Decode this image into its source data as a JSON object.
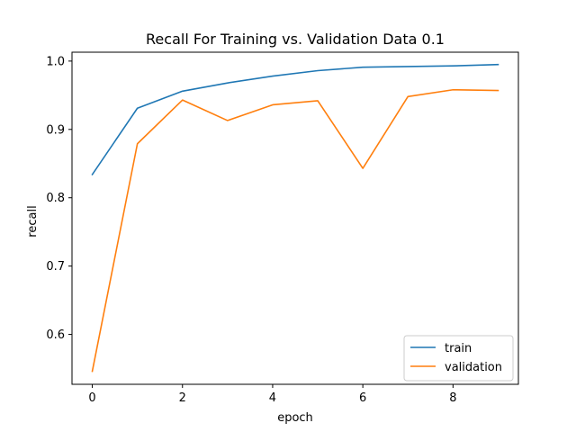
{
  "chart_data": {
    "type": "line",
    "title": "Recall For Training vs. Validation Data 0.1",
    "xlabel": "epoch",
    "ylabel": "recall",
    "xlim": [
      -0.45,
      9.45
    ],
    "ylim": [
      0.527,
      1.013
    ],
    "xticks": [
      0,
      2,
      4,
      6,
      8
    ],
    "yticks": [
      0.6,
      0.7,
      0.8,
      0.9,
      1.0
    ],
    "xtick_labels": [
      "0",
      "2",
      "4",
      "6",
      "8"
    ],
    "ytick_labels": [
      "0.6",
      "0.7",
      "0.8",
      "0.9",
      "1.0"
    ],
    "grid": false,
    "legend_position": "lower-right",
    "x": [
      0,
      1,
      2,
      3,
      4,
      5,
      6,
      7,
      8,
      9
    ],
    "series": [
      {
        "name": "train",
        "color": "#1f77b4",
        "values": [
          0.834,
          0.931,
          0.956,
          0.968,
          0.978,
          0.986,
          0.991,
          0.992,
          0.993,
          0.995
        ]
      },
      {
        "name": "validation",
        "color": "#ff7f0e",
        "values": [
          0.546,
          0.879,
          0.943,
          0.913,
          0.936,
          0.942,
          0.843,
          0.948,
          0.958,
          0.957
        ]
      }
    ]
  }
}
